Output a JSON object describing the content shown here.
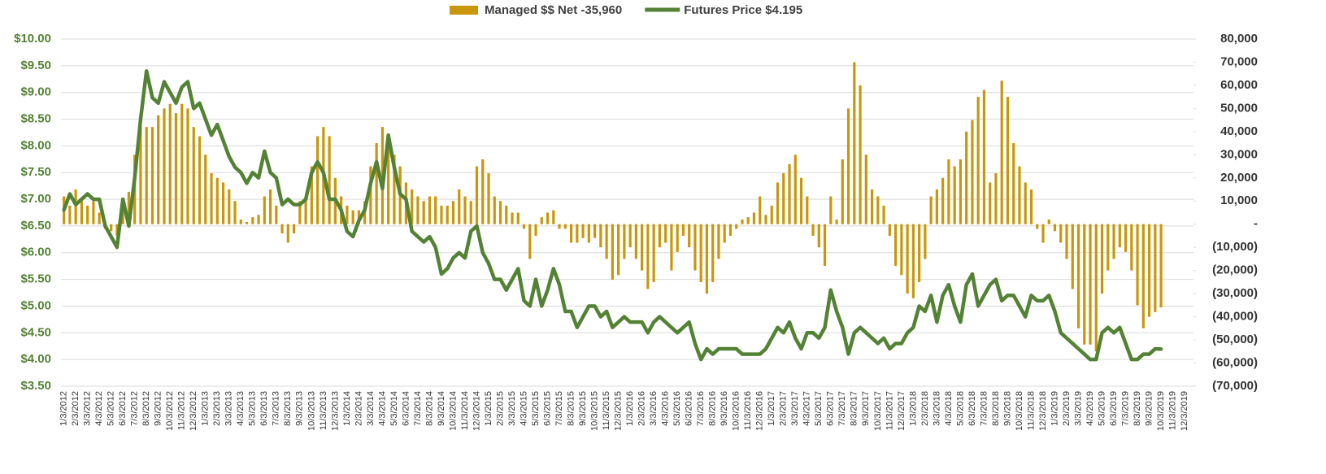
{
  "chart_data": {
    "type": "bar-line",
    "categories": [
      "1/3/2012",
      null,
      "2/3/2012",
      null,
      "3/3/2012",
      null,
      "4/3/2012",
      null,
      "5/3/2012",
      null,
      "6/3/2012",
      null,
      "7/3/2012",
      null,
      "8/3/2012",
      null,
      "9/3/2012",
      null,
      "10/3/2012",
      null,
      "11/3/2012",
      null,
      "12/3/2012",
      null,
      "1/3/2013",
      null,
      "2/3/2013",
      null,
      "3/3/2013",
      null,
      "4/3/2013",
      null,
      "5/3/2013",
      null,
      "6/3/2013",
      null,
      "7/3/2013",
      null,
      "8/3/2013",
      null,
      "9/3/2013",
      null,
      "10/3/2013",
      null,
      "11/3/2013",
      null,
      "12/3/2013",
      null,
      "1/3/2014",
      null,
      "2/3/2014",
      null,
      "3/3/2014",
      null,
      "4/3/2014",
      null,
      "5/3/2014",
      null,
      "6/3/2014",
      null,
      "7/3/2014",
      null,
      "8/3/2014",
      null,
      "9/3/2014",
      null,
      "10/3/2014",
      null,
      "11/3/2014",
      null,
      "12/3/2014",
      null,
      "1/3/2015",
      null,
      "2/3/2015",
      null,
      "3/3/2015",
      null,
      "4/3/2015",
      null,
      "5/3/2015",
      null,
      "6/3/2015",
      null,
      "7/3/2015",
      null,
      "8/3/2015",
      null,
      "9/3/2015",
      null,
      "10/3/2015",
      null,
      "11/3/2015",
      null,
      "12/3/2015",
      null,
      "1/3/2016",
      null,
      "2/3/2016",
      null,
      "3/3/2016",
      null,
      "4/3/2016",
      null,
      "5/3/2016",
      null,
      "6/3/2016",
      null,
      "7/3/2016",
      null,
      "8/3/2016",
      null,
      "9/3/2016",
      null,
      "10/3/2016",
      null,
      "11/3/2016",
      null,
      "12/3/2016",
      null,
      "1/3/2017",
      null,
      "2/3/2017",
      null,
      "3/3/2017",
      null,
      "4/3/2017",
      null,
      "5/3/2017",
      null,
      "6/3/2017",
      null,
      "7/3/2017",
      null,
      "8/3/2017",
      null,
      "9/3/2017",
      null,
      "10/3/2017",
      null,
      "11/3/2017",
      null,
      "12/3/2017",
      null,
      "1/3/2018",
      null,
      "2/3/2018",
      null,
      "3/3/2018",
      null,
      "4/3/2018",
      null,
      "5/3/2018",
      null,
      "6/3/2018",
      null,
      "7/3/2018",
      null,
      "8/3/2018",
      null,
      "9/3/2018",
      null,
      "10/3/2018",
      null,
      "11/3/2018",
      null,
      "12/3/2018",
      null,
      "1/3/2019",
      null,
      "2/3/2019",
      null,
      "3/3/2019",
      null,
      "4/3/2019",
      null,
      "5/3/2019",
      null,
      "6/3/2019",
      null,
      "7/3/2019",
      null,
      "8/3/2019",
      null,
      "9/3/2019",
      null,
      "10/3/2019",
      null,
      "11/3/2019",
      null,
      "12/3/2019",
      null
    ],
    "series": [
      {
        "name": "Managed $$ Net -35,960",
        "type": "bar",
        "axis": "y2",
        "color": "#c9970e",
        "values": [
          12000,
          8000,
          15000,
          10000,
          8000,
          10000,
          5000,
          -2000,
          -3000,
          -5000,
          10000,
          14000,
          30000,
          42000,
          42000,
          42000,
          47000,
          50000,
          52000,
          48000,
          52000,
          50000,
          42000,
          38000,
          30000,
          22000,
          20000,
          18000,
          15000,
          10000,
          2000,
          1000,
          3000,
          4000,
          12000,
          15000,
          8000,
          -4000,
          -8000,
          -4000,
          10000,
          12000,
          25000,
          38000,
          42000,
          38000,
          20000,
          12000,
          8000,
          6000,
          6000,
          10000,
          25000,
          35000,
          42000,
          38000,
          30000,
          25000,
          18000,
          15000,
          12000,
          10000,
          12000,
          12000,
          8000,
          8000,
          10000,
          15000,
          12000,
          10000,
          25000,
          28000,
          22000,
          12000,
          10000,
          8000,
          5000,
          5000,
          -2000,
          -15000,
          -5000,
          3000,
          5000,
          6000,
          -2000,
          -2000,
          -8000,
          -8000,
          -6000,
          -8000,
          -6000,
          -10000,
          -15000,
          -24000,
          -22000,
          -15000,
          -10000,
          -15000,
          -20000,
          -28000,
          -25000,
          -10000,
          -8000,
          -20000,
          -12000,
          -5000,
          -10000,
          -20000,
          -25000,
          -30000,
          -25000,
          -15000,
          -8000,
          -5000,
          -2000,
          2000,
          3000,
          5000,
          12000,
          4000,
          8000,
          18000,
          22000,
          26000,
          30000,
          20000,
          12000,
          -5000,
          -10000,
          -18000,
          12000,
          2000,
          28000,
          50000,
          70000,
          60000,
          30000,
          15000,
          12000,
          8000,
          -5000,
          -18000,
          -22000,
          -30000,
          -32000,
          -25000,
          -15000,
          12000,
          15000,
          20000,
          28000,
          25000,
          28000,
          40000,
          45000,
          55000,
          58000,
          18000,
          22000,
          62000,
          55000,
          35000,
          25000,
          18000,
          15000,
          -2000,
          -8000,
          2000,
          -3000,
          -8000,
          -15000,
          -28000,
          -45000,
          -52000,
          -52000,
          -55000,
          -30000,
          -20000,
          -15000,
          -10000,
          -12000,
          -20000,
          -35000,
          -45000,
          -40000,
          -38000,
          -35960,
          null,
          null,
          null,
          null,
          null
        ]
      },
      {
        "name": "Futures Price $4.195",
        "type": "line",
        "axis": "y",
        "color": "#548235",
        "values": [
          6.8,
          7.1,
          6.9,
          7.0,
          7.1,
          7.0,
          7.0,
          6.5,
          6.3,
          6.1,
          7.0,
          6.5,
          7.4,
          8.5,
          9.4,
          8.9,
          8.8,
          9.2,
          9.0,
          8.8,
          9.1,
          9.2,
          8.7,
          8.8,
          8.5,
          8.2,
          8.4,
          8.1,
          7.8,
          7.6,
          7.5,
          7.3,
          7.5,
          7.4,
          7.9,
          7.5,
          7.4,
          6.9,
          7.0,
          6.9,
          6.9,
          7.0,
          7.5,
          7.7,
          7.5,
          7.0,
          7.0,
          6.8,
          6.4,
          6.3,
          6.6,
          6.8,
          7.3,
          7.7,
          7.2,
          8.2,
          7.6,
          7.1,
          7.0,
          6.4,
          6.3,
          6.2,
          6.3,
          6.1,
          5.6,
          5.7,
          5.9,
          6.0,
          5.9,
          6.4,
          6.5,
          6.0,
          5.8,
          5.5,
          5.5,
          5.3,
          5.5,
          5.7,
          5.1,
          5.0,
          5.5,
          5.0,
          5.3,
          5.7,
          5.4,
          4.9,
          4.9,
          4.6,
          4.8,
          5.0,
          5.0,
          4.8,
          4.9,
          4.6,
          4.7,
          4.8,
          4.7,
          4.7,
          4.7,
          4.5,
          4.7,
          4.8,
          4.7,
          4.6,
          4.5,
          4.6,
          4.7,
          4.3,
          4.0,
          4.2,
          4.1,
          4.2,
          4.2,
          4.2,
          4.2,
          4.1,
          4.1,
          4.1,
          4.1,
          4.2,
          4.4,
          4.6,
          4.5,
          4.7,
          4.4,
          4.2,
          4.5,
          4.5,
          4.4,
          4.6,
          5.3,
          4.9,
          4.6,
          4.1,
          4.5,
          4.6,
          4.5,
          4.4,
          4.3,
          4.4,
          4.2,
          4.3,
          4.3,
          4.5,
          4.6,
          5.0,
          4.9,
          5.2,
          4.7,
          5.2,
          5.4,
          5.0,
          4.7,
          5.4,
          5.6,
          5.0,
          5.2,
          5.4,
          5.5,
          5.1,
          5.2,
          5.2,
          5.0,
          4.8,
          5.2,
          5.1,
          5.1,
          5.2,
          4.9,
          4.5,
          4.4,
          4.3,
          4.2,
          4.1,
          4.0,
          4.0,
          4.5,
          4.6,
          4.5,
          4.6,
          4.3,
          4.0,
          4.0,
          4.1,
          4.1,
          4.2,
          4.195,
          null,
          null,
          null,
          null,
          null
        ]
      }
    ],
    "ylim": [
      3.5,
      10
    ],
    "yticks": [
      {
        "value": 3.5,
        "label": "$3.50"
      },
      {
        "value": 4,
        "label": "$4.00"
      },
      {
        "value": 4.5,
        "label": "$4.50"
      },
      {
        "value": 5,
        "label": "$5.00"
      },
      {
        "value": 5.5,
        "label": "$5.50"
      },
      {
        "value": 6,
        "label": "$6.00"
      },
      {
        "value": 6.5,
        "label": "$6.50"
      },
      {
        "value": 7,
        "label": "$7.00"
      },
      {
        "value": 7.5,
        "label": "$7.50"
      },
      {
        "value": 8,
        "label": "$8.00"
      },
      {
        "value": 8.5,
        "label": "$8.50"
      },
      {
        "value": 9,
        "label": "$9.00"
      },
      {
        "value": 9.5,
        "label": "$9.50"
      },
      {
        "value": 10,
        "label": "$10.00"
      }
    ],
    "y2lim": [
      -70000,
      80000
    ],
    "y2ticks": [
      {
        "value": -70000,
        "label": "(70,000)"
      },
      {
        "value": -60000,
        "label": "(60,000)"
      },
      {
        "value": -50000,
        "label": "(50,000)"
      },
      {
        "value": -40000,
        "label": "(40,000)"
      },
      {
        "value": -30000,
        "label": "(30,000)"
      },
      {
        "value": -20000,
        "label": "(20,000)"
      },
      {
        "value": -10000,
        "label": "(10,000)"
      },
      {
        "value": 0,
        "label": "-"
      },
      {
        "value": 10000,
        "label": "10,000"
      },
      {
        "value": 20000,
        "label": "20,000"
      },
      {
        "value": 30000,
        "label": "30,000"
      },
      {
        "value": 40000,
        "label": "40,000"
      },
      {
        "value": 50000,
        "label": "50,000"
      },
      {
        "value": 60000,
        "label": "60,000"
      },
      {
        "value": 70000,
        "label": "70,000"
      },
      {
        "value": 80000,
        "label": "80,000"
      }
    ],
    "grid": true,
    "legend": "top"
  }
}
